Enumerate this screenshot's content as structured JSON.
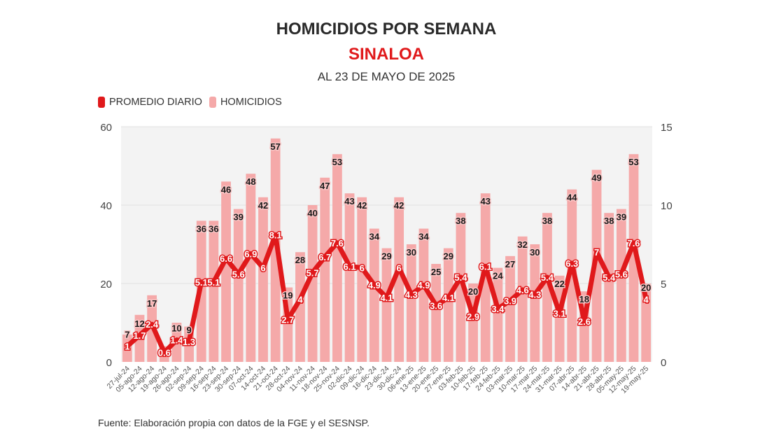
{
  "chart_data": {
    "type": "bar+line",
    "title": "HOMICIDIOS POR SEMANA",
    "subtitle": "SINALOA",
    "date_note": "AL 23 DE MAYO DE 2025",
    "source": "Fuente: Elaboración propia con datos de la FGE y el SESNSP.",
    "legend_position": "top-left",
    "grid": true,
    "colors": {
      "line": "#e0191b",
      "bars": "#f5a9a9",
      "plot_bg": "#f3f3f3"
    },
    "categories": [
      "27-jul-24",
      "05-ago-24",
      "12-ago-24",
      "19-ago-24",
      "26-ago-24",
      "02-sep-24",
      "09-sep-24",
      "16-sep-24",
      "23-sep-24",
      "30-sep-24",
      "07-oct-24",
      "14-oct-24",
      "21-oct-24",
      "28-oct-24",
      "04-nov-24",
      "11-nov-24",
      "18-nov-24",
      "25-nov-24",
      "02-dic-24",
      "09-dic-24",
      "16-dic-24",
      "23-dic-24",
      "30-dic-24",
      "06-ene-25",
      "13-ene-25",
      "20-ene-25",
      "27-ene-25",
      "03-feb-25",
      "10-feb-25",
      "17-feb-25",
      "24-feb-25",
      "03-mar-25",
      "10-mar-25",
      "17-mar-25",
      "24-mar-25",
      "31-mar-25",
      "07-abr-25",
      "14-abr-25",
      "21-abr-25",
      "28-abr-25",
      "05-may-25",
      "12-may-25",
      "19-may-25"
    ],
    "series": [
      {
        "name": "HOMICIDIOS",
        "type": "bar",
        "axis": "left",
        "values": [
          7,
          12,
          17,
          4,
          10,
          9,
          36,
          36,
          46,
          39,
          48,
          42,
          57,
          19,
          28,
          40,
          47,
          53,
          43,
          42,
          34,
          29,
          42,
          30,
          34,
          25,
          29,
          38,
          20,
          43,
          24,
          27,
          32,
          30,
          38,
          22,
          44,
          18,
          49,
          38,
          39,
          53,
          20
        ]
      },
      {
        "name": "PROMEDIO DIARIO",
        "type": "line",
        "axis": "right",
        "values": [
          1,
          1.7,
          2.4,
          0.6,
          1.4,
          1.3,
          5.1,
          5.1,
          6.6,
          5.6,
          6.9,
          6,
          8.1,
          2.7,
          4,
          5.7,
          6.7,
          7.6,
          6.1,
          6,
          4.9,
          4.1,
          6,
          4.3,
          4.9,
          3.6,
          4.1,
          5.4,
          2.9,
          6.1,
          3.4,
          3.9,
          4.6,
          4.3,
          5.4,
          3.1,
          6.3,
          2.6,
          7,
          5.4,
          5.6,
          7.6,
          4
        ]
      }
    ],
    "y_left": {
      "range": [
        0,
        60
      ],
      "ticks": [
        "0",
        "20",
        "40",
        "60"
      ]
    },
    "y_right": {
      "range": [
        0,
        15
      ],
      "ticks": [
        "0",
        "5",
        "10",
        "15"
      ]
    }
  }
}
